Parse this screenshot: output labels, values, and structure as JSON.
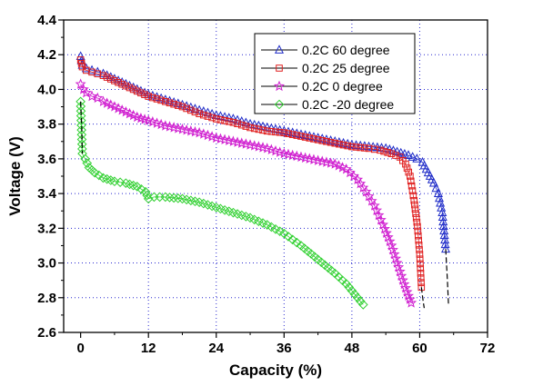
{
  "chart_data": {
    "type": "scatter",
    "title": "",
    "xlabel": "Capacity (%)",
    "ylabel": "Voltage (V)",
    "xlim": [
      -3,
      72
    ],
    "ylim": [
      2.6,
      4.4
    ],
    "xticks": [
      0,
      12,
      24,
      36,
      48,
      60,
      72
    ],
    "yticks": [
      2.6,
      2.8,
      3.0,
      3.2,
      3.4,
      3.6,
      3.8,
      4.0,
      4.2,
      4.4
    ],
    "xtick_labels": [
      "0",
      "12",
      "24",
      "36",
      "48",
      "60",
      "72"
    ],
    "ytick_labels": [
      "2.6",
      "2.8",
      "3.0",
      "3.2",
      "3.4",
      "3.6",
      "3.8",
      "4.0",
      "4.2",
      "4.4"
    ],
    "grid": "dotted",
    "legend_position": "top-right",
    "series": [
      {
        "name": "0.2C  60 degree",
        "marker": "triangle",
        "color": "#1e2bc8",
        "points": [
          [
            0,
            4.19
          ],
          [
            0.3,
            4.14
          ],
          [
            1,
            4.12
          ],
          [
            2,
            4.11
          ],
          [
            3,
            4.1
          ],
          [
            4,
            4.09
          ],
          [
            6,
            4.06
          ],
          [
            8,
            4.03
          ],
          [
            10,
            4.0
          ],
          [
            12,
            3.97
          ],
          [
            15,
            3.94
          ],
          [
            18,
            3.91
          ],
          [
            21,
            3.88
          ],
          [
            24,
            3.85
          ],
          [
            27,
            3.83
          ],
          [
            30,
            3.8
          ],
          [
            33,
            3.78
          ],
          [
            36,
            3.76
          ],
          [
            39,
            3.74
          ],
          [
            42,
            3.72
          ],
          [
            45,
            3.7
          ],
          [
            48,
            3.68
          ],
          [
            51,
            3.67
          ],
          [
            54,
            3.66
          ],
          [
            56,
            3.64
          ],
          [
            58,
            3.62
          ],
          [
            59.5,
            3.6
          ],
          [
            60.5,
            3.58
          ],
          [
            61.5,
            3.52
          ],
          [
            62.5,
            3.46
          ],
          [
            63.3,
            3.4
          ],
          [
            64,
            3.29
          ],
          [
            64.6,
            3.08
          ]
        ]
      },
      {
        "name": "0.2C  25 degree",
        "marker": "square",
        "color": "#e02020",
        "points": [
          [
            0,
            4.17
          ],
          [
            0.3,
            4.13
          ],
          [
            1,
            4.11
          ],
          [
            2,
            4.1
          ],
          [
            3,
            4.09
          ],
          [
            4,
            4.08
          ],
          [
            6,
            4.05
          ],
          [
            8,
            4.02
          ],
          [
            10,
            3.99
          ],
          [
            12,
            3.96
          ],
          [
            15,
            3.93
          ],
          [
            18,
            3.9
          ],
          [
            21,
            3.86
          ],
          [
            24,
            3.83
          ],
          [
            27,
            3.81
          ],
          [
            30,
            3.78
          ],
          [
            33,
            3.76
          ],
          [
            36,
            3.75
          ],
          [
            39,
            3.73
          ],
          [
            42,
            3.71
          ],
          [
            45,
            3.69
          ],
          [
            48,
            3.67
          ],
          [
            51,
            3.66
          ],
          [
            53,
            3.65
          ],
          [
            55,
            3.63
          ],
          [
            56.5,
            3.61
          ],
          [
            57.5,
            3.57
          ],
          [
            58.3,
            3.5
          ],
          [
            59,
            3.36
          ],
          [
            59.6,
            3.21
          ],
          [
            60,
            3.05
          ],
          [
            60.3,
            2.86
          ]
        ]
      },
      {
        "name": "0.2C  0  degree",
        "marker": "star",
        "color": "#d020d0",
        "points": [
          [
            0,
            4.03
          ],
          [
            0.5,
            4.0
          ],
          [
            1,
            3.98
          ],
          [
            2,
            3.96
          ],
          [
            3,
            3.95
          ],
          [
            4,
            3.93
          ],
          [
            6,
            3.9
          ],
          [
            8,
            3.87
          ],
          [
            10,
            3.84
          ],
          [
            12,
            3.82
          ],
          [
            15,
            3.79
          ],
          [
            18,
            3.77
          ],
          [
            21,
            3.75
          ],
          [
            24,
            3.72
          ],
          [
            27,
            3.7
          ],
          [
            30,
            3.68
          ],
          [
            33,
            3.66
          ],
          [
            36,
            3.63
          ],
          [
            39,
            3.61
          ],
          [
            42,
            3.59
          ],
          [
            45,
            3.57
          ],
          [
            47,
            3.54
          ],
          [
            49,
            3.48
          ],
          [
            50.5,
            3.41
          ],
          [
            52,
            3.33
          ],
          [
            53.5,
            3.22
          ],
          [
            55,
            3.1
          ],
          [
            56,
            3.0
          ],
          [
            57,
            2.9
          ],
          [
            58,
            2.81
          ],
          [
            58.5,
            2.77
          ]
        ]
      },
      {
        "name": "0.2C -20 degree",
        "marker": "diamond",
        "color": "#30d030",
        "points": [
          [
            0,
            3.93
          ],
          [
            0.3,
            3.63
          ],
          [
            0.8,
            3.6
          ],
          [
            1.5,
            3.55
          ],
          [
            2.5,
            3.52
          ],
          [
            4,
            3.49
          ],
          [
            6,
            3.47
          ],
          [
            8,
            3.46
          ],
          [
            10,
            3.44
          ],
          [
            11.5,
            3.41
          ],
          [
            12,
            3.37
          ],
          [
            13,
            3.38
          ],
          [
            15,
            3.38
          ],
          [
            18,
            3.37
          ],
          [
            21,
            3.35
          ],
          [
            24,
            3.32
          ],
          [
            27,
            3.29
          ],
          [
            30,
            3.26
          ],
          [
            33,
            3.22
          ],
          [
            36,
            3.17
          ],
          [
            39,
            3.1
          ],
          [
            42,
            3.02
          ],
          [
            45,
            2.94
          ],
          [
            47,
            2.88
          ],
          [
            48.5,
            2.82
          ],
          [
            49.5,
            2.78
          ],
          [
            50,
            2.76
          ]
        ]
      }
    ],
    "tail_lines": [
      {
        "series": 0,
        "points": [
          [
            64.6,
            3.08
          ],
          [
            64.9,
            2.9
          ],
          [
            65.1,
            2.76
          ]
        ]
      },
      {
        "series": 1,
        "points": [
          [
            60.3,
            2.86
          ],
          [
            60.6,
            2.78
          ],
          [
            60.8,
            2.74
          ]
        ]
      },
      {
        "series": 3,
        "points": [
          [
            0,
            3.93
          ],
          [
            0.2,
            3.78
          ],
          [
            0.3,
            3.63
          ]
        ]
      }
    ]
  }
}
